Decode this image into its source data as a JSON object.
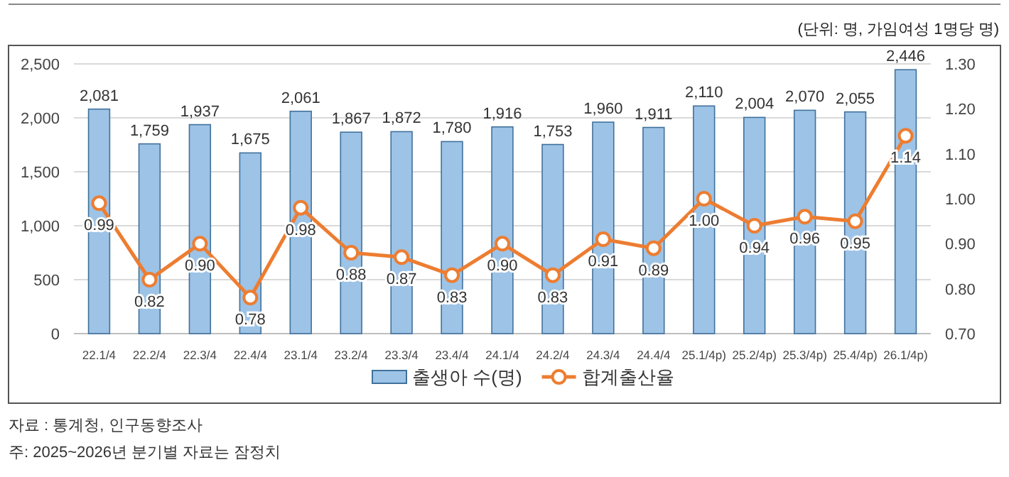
{
  "chart_data": {
    "type": "bar",
    "categories": [
      "22.1/4",
      "22.2/4",
      "22.3/4",
      "22.4/4",
      "23.1/4",
      "23.2/4",
      "23.3/4",
      "23.4/4",
      "24.1/4",
      "24.2/4",
      "24.3/4",
      "24.4/4",
      "25.1/4p)",
      "25.2/4p)",
      "25.3/4p)",
      "25.4/4p)",
      "26.1/4p)"
    ],
    "series": [
      {
        "name": "출생아 수(명)",
        "color": "#9dc3e6",
        "values": [
          2081,
          1759,
          1937,
          1675,
          2061,
          1867,
          1872,
          1780,
          1916,
          1753,
          1960,
          1911,
          2110,
          2004,
          2070,
          2055,
          2446
        ],
        "value_labels": [
          "2,081",
          "1,759",
          "1,937",
          "1,675",
          "2,061",
          "1,867",
          "1,872",
          "1,780",
          "1,916",
          "1,753",
          "1,960",
          "1,911",
          "2,110",
          "2,004",
          "2,070",
          "2,055",
          "2,446"
        ]
      },
      {
        "name": "합계출산율",
        "type": "line",
        "axis": "y2",
        "color": "#ed7d31",
        "marker": "circle",
        "values": [
          0.99,
          0.82,
          0.9,
          0.78,
          0.98,
          0.88,
          0.87,
          0.83,
          0.9,
          0.83,
          0.91,
          0.89,
          1.0,
          0.94,
          0.96,
          0.95,
          1.14
        ],
        "value_labels": [
          "0.99",
          "0.82",
          "0.90",
          "0.78",
          "0.98",
          "0.88",
          "0.87",
          "0.83",
          "0.90",
          "0.83",
          "0.91",
          "0.89",
          "1.00",
          "0.94",
          "0.96",
          "0.95",
          "1.14"
        ]
      }
    ],
    "ylim": [
      0,
      2500
    ],
    "yticks": [
      0,
      {
        "value": 500,
        "label": "500"
      },
      {
        "value": 1000,
        "label": "1,000"
      },
      {
        "value": 1500,
        "label": "1,500"
      },
      {
        "value": 2000,
        "label": "2,000"
      },
      {
        "value": 2500,
        "label": "2,500"
      }
    ],
    "y2lim": [
      0.7,
      1.3
    ],
    "y2ticks": [
      {
        "value": 0.7,
        "label": "0.70"
      },
      {
        "value": 0.8,
        "label": "0.80"
      },
      {
        "value": 0.9,
        "label": "0.90"
      },
      {
        "value": 1.0,
        "label": "1.00"
      },
      {
        "value": 1.1,
        "label": "1.10"
      },
      {
        "value": 1.2,
        "label": "1.20"
      },
      {
        "value": 1.3,
        "label": "1.30"
      }
    ],
    "grid": "y",
    "legend": "bottom",
    "annotations": [
      "(단위: 명, 가임여성 1명당 명)",
      "자료 : 통계청, 인구동향조사",
      "주: 2025~2026년 분기별 자료는 잠정치"
    ]
  }
}
